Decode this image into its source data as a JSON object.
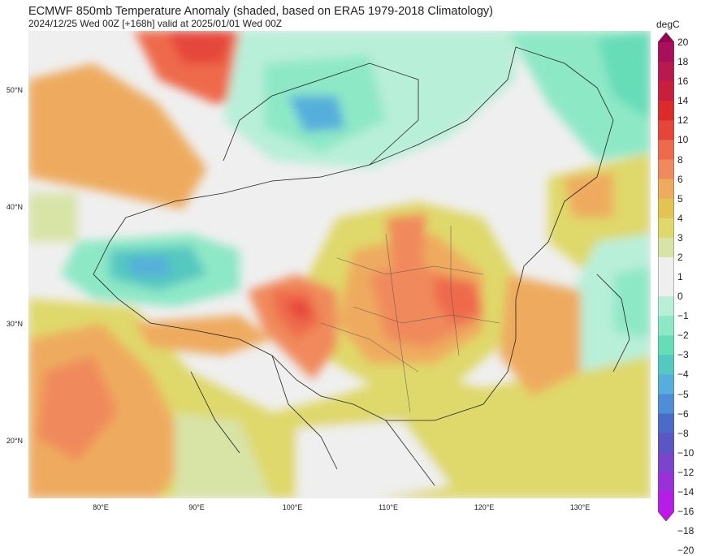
{
  "header": {
    "title": "ECMWF 850mb Temperature Anomaly (shaded, based on ERA5 1979-2018 Climatology)",
    "subtitle": "2024/12/25 Wed 00Z [+168h] valid at 2025/01/01 Wed 00Z"
  },
  "map": {
    "lat_labels": [
      "50°N",
      "40°N",
      "30°N",
      "20°N"
    ],
    "lon_labels": [
      "80°E",
      "90°E",
      "100°E",
      "110°E",
      "120°E",
      "130°E"
    ]
  },
  "colorbar": {
    "unit": "degC",
    "levels": [
      "20",
      "18",
      "16",
      "14",
      "12",
      "10",
      "8",
      "6",
      "5",
      "4",
      "3",
      "2",
      "1",
      "0",
      "−1",
      "−2",
      "−3",
      "−4",
      "−5",
      "−6",
      "−8",
      "−10",
      "−12",
      "−14",
      "−16",
      "−18",
      "−20"
    ],
    "colors": [
      "#9b0055",
      "#a8105a",
      "#b81a50",
      "#c8203c",
      "#dd2b2b",
      "#e6463a",
      "#ee6a4c",
      "#f08a5c",
      "#eeab5e",
      "#e3c452",
      "#dfd86a",
      "#d8e3a6",
      "#efefef",
      "#efefef",
      "#b8efd9",
      "#8de8c6",
      "#66dcb7",
      "#55c8c0",
      "#56aedb",
      "#4e8ed6",
      "#4a6cc8",
      "#5a56c4",
      "#7b44cc",
      "#9a30da",
      "#b51ee6",
      "#c810f0"
    ]
  }
}
